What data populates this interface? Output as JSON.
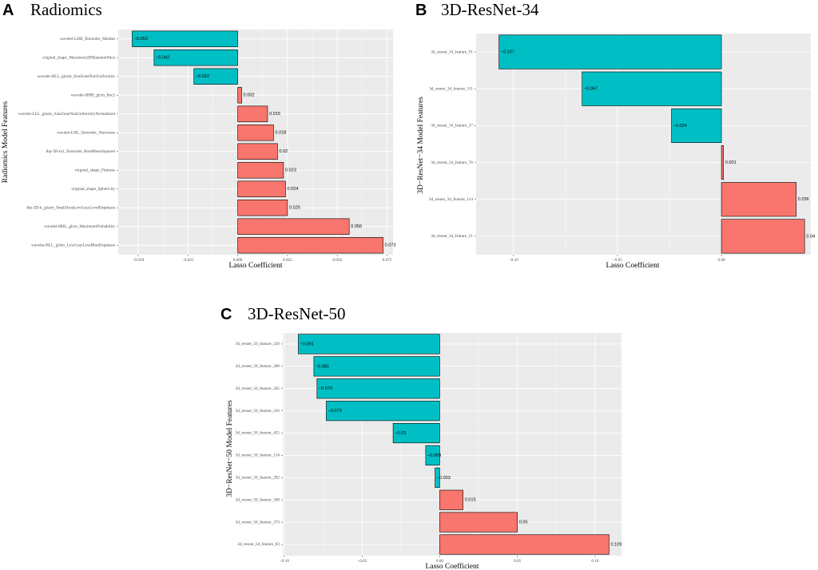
{
  "colors": {
    "negative": "#00BFC4",
    "positive": "#F8766D",
    "panel_bg": "#EBEBEB",
    "grid": "#FFFFFF",
    "bar_border": "#000000"
  },
  "chart_data": [
    {
      "id": "A",
      "type": "bar",
      "orientation": "horizontal",
      "panel_label": "A",
      "title": "Radiomics",
      "xlabel": "Lasso Coefficient",
      "ylabel": "Radiomics Model Features",
      "xlim": [
        -0.06,
        0.078
      ],
      "xticks": [
        -0.05,
        -0.025,
        0,
        0.025,
        0.05,
        0.075
      ],
      "xtick_labels": [
        "−0.050",
        "−0.025",
        "0.000",
        "0.025",
        "0.050",
        "0.075"
      ],
      "categories": [
        "wavelet-LHH_firstorder_Median",
        "original_shape_Maximum2DDiameterSlice",
        "wavelet-HLL_glszm_SizeZoneNonUniformity",
        "wavelet-HHH_glcm_Imc2",
        "wavelet-LLL_glszm_SizeZoneNonUniformityNormalized",
        "wavelet-LHL_firstorder_Skewness",
        "lbp-3D-m1_firstorder_RootMeanSquared",
        "original_shape_Flatness",
        "original_shape_Sphericity",
        "lbp-3D-k_glszm_SmallAreaLowGrayLevelEmphasis",
        "wavelet-HHL_glcm_MaximumProbability",
        "wavelet-HLL_glrlm_LowGrayLevelRunEmphasis"
      ],
      "values": [
        -0.053,
        -0.042,
        -0.022,
        0.002,
        0.015,
        0.018,
        0.02,
        0.023,
        0.024,
        0.025,
        0.056,
        0.073
      ],
      "value_labels": [
        "−0.053",
        "−0.042",
        "−0.022",
        "0.002",
        "0.015",
        "0.018",
        "0.02",
        "0.023",
        "0.024",
        "0.025",
        "0.056",
        "0.073"
      ]
    },
    {
      "id": "B",
      "type": "bar",
      "orientation": "horizontal",
      "panel_label": "B",
      "title": "3D-ResNet-34",
      "xlabel": "Lasso Coefficient",
      "ylabel": "3D−ResNet−34 Model Features",
      "xlim": [
        -0.118,
        0.043
      ],
      "xticks": [
        -0.1,
        -0.05,
        0
      ],
      "xtick_labels": [
        "−0.10",
        "−0.05",
        "0.00"
      ],
      "categories": [
        "3d_resnet_34_feature_91",
        "3d_resnet_34_feature_111",
        "3d_resnet_34_feature_27",
        "3d_resnet_34_feature_76",
        "3d_resnet_34_feature_114",
        "3d_resnet_34_feature_51"
      ],
      "values": [
        -0.107,
        -0.067,
        -0.024,
        0.001,
        0.036,
        0.04
      ],
      "value_labels": [
        "−0.107",
        "−0.067",
        "−0.024",
        "0.001",
        "0.036",
        "0.04"
      ]
    },
    {
      "id": "C",
      "type": "bar",
      "orientation": "horizontal",
      "panel_label": "C",
      "title": "3D-ResNet-50",
      "xlabel": "Lasso Coefficient",
      "ylabel": "3D−ResNet−50 Model Features",
      "xlim": [
        -0.101,
        0.117
      ],
      "xticks": [
        -0.1,
        -0.05,
        0,
        0.05,
        0.1
      ],
      "xtick_labels": [
        "−0.10",
        "−0.05",
        "0.00",
        "0.05",
        "0.10"
      ],
      "categories": [
        "3d_resnet_50_feature_220",
        "3d_resnet_50_feature_300",
        "3d_resnet_50_feature_345",
        "3d_resnet_50_feature_316",
        "3d_resnet_50_feature_425",
        "3d_resnet_50_feature_134",
        "3d_resnet_50_feature_282",
        "3d_resnet_50_feature_308",
        "3d_resnet_50_feature_373",
        "3d_resnet_50_feature_83"
      ],
      "values": [
        -0.091,
        -0.081,
        -0.079,
        -0.073,
        -0.03,
        -0.009,
        -0.003,
        0.015,
        0.05,
        0.109
      ],
      "value_labels": [
        "−0.091",
        "−0.081",
        "−0.079",
        "−0.073",
        "−0.03",
        "−0.009",
        "−0.003",
        "0.015",
        "0.05",
        "0.109"
      ]
    }
  ]
}
